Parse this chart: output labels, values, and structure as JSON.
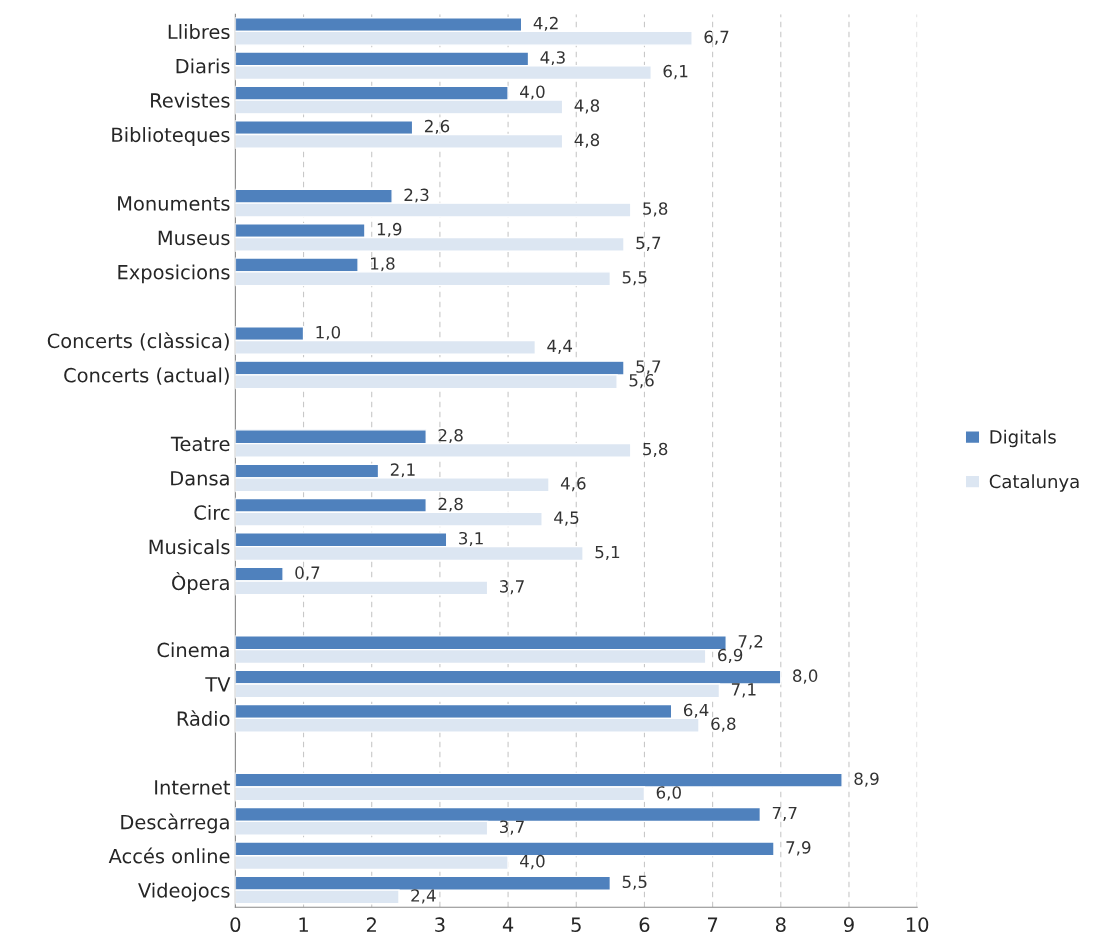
{
  "chart_data": {
    "type": "bar",
    "orientation": "horizontal",
    "categories": [
      "Llibres",
      "Diaris",
      "Revistes",
      "Biblioteques",
      null,
      "Monuments",
      "Museus",
      "Exposicions",
      null,
      "Concerts (clàssica)",
      "Concerts (actual)",
      null,
      "Teatre",
      "Dansa",
      "Circ",
      "Musicals",
      "Òpera",
      null,
      "Cinema",
      "TV",
      "Ràdio",
      null,
      "Internet",
      "Descàrrega",
      "Accés online",
      "Videojocs"
    ],
    "series": [
      {
        "name": "Digitals",
        "color": "#4f81bd",
        "values": [
          4.2,
          4.3,
          4.0,
          2.6,
          null,
          2.3,
          1.9,
          1.8,
          null,
          1.0,
          5.7,
          null,
          2.8,
          2.1,
          2.8,
          3.1,
          0.7,
          null,
          7.2,
          8.0,
          6.4,
          null,
          8.9,
          7.7,
          7.9,
          5.5
        ],
        "value_labels": [
          "4,2",
          "4,3",
          "4,0",
          "2,6",
          null,
          "2,3",
          "1,9",
          "1,8",
          null,
          "1,0",
          "5,7",
          null,
          "2,8",
          "2,1",
          "2,8",
          "3,1",
          "0,7",
          null,
          "7,2",
          "8,0",
          "6,4",
          null,
          "8,9",
          "7,7",
          "7,9",
          "5,5"
        ]
      },
      {
        "name": "Catalunya",
        "color": "#dce6f2",
        "values": [
          6.7,
          6.1,
          4.8,
          4.8,
          null,
          5.8,
          5.7,
          5.5,
          null,
          4.4,
          5.6,
          null,
          5.8,
          4.6,
          4.5,
          5.1,
          3.7,
          null,
          6.9,
          7.1,
          6.8,
          null,
          6.0,
          3.7,
          4.0,
          2.4
        ],
        "value_labels": [
          "6,7",
          "6,1",
          "4,8",
          "4,8",
          null,
          "5,8",
          "5,7",
          "5,5",
          null,
          "4,4",
          "5,6",
          null,
          "5,8",
          "4,6",
          "4,5",
          "5,1",
          "3,7",
          null,
          "6,9",
          "7,1",
          "6,8",
          null,
          "6,0",
          "3,7",
          "4,0",
          "2,4"
        ]
      }
    ],
    "xlim": [
      0,
      10
    ],
    "xticks": [
      0,
      1,
      2,
      3,
      4,
      5,
      6,
      7,
      8,
      9,
      10
    ],
    "grid": "x",
    "legend": "right"
  }
}
